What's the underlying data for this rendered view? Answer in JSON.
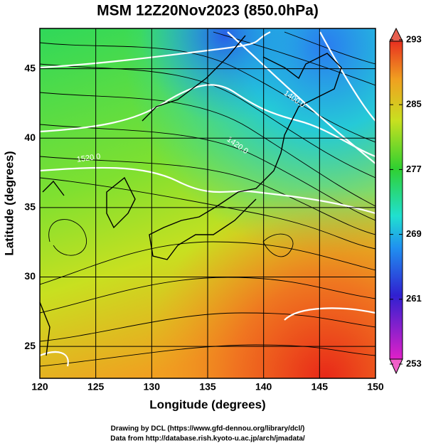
{
  "title": "MSM 12Z20Nov2023 (850.0hPa)",
  "xlabel": "Longitude (degrees)",
  "ylabel": "Latitude  (degrees)",
  "xlim": [
    120,
    150
  ],
  "xticks": [
    120,
    125,
    130,
    135,
    140,
    145,
    150
  ],
  "ylim": [
    22.7,
    47.9
  ],
  "yticks": [
    25,
    30,
    35,
    40,
    45
  ],
  "colorbar": {
    "lim": [
      253,
      293
    ],
    "ticks": [
      253,
      261,
      269,
      277,
      285,
      293
    ]
  },
  "contour_labels": [
    "1400.0",
    "1420.0",
    "1520.0"
  ],
  "credits": [
    "Drawing by DCL (https://www.gfd-dennou.org/library/dcl/)",
    "Data from http://database.rish.kyoto-u.ac.jp/arch/jmadata/"
  ]
}
